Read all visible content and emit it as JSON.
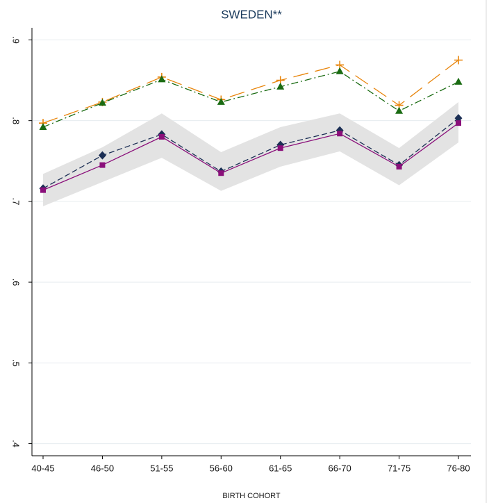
{
  "chart_data": {
    "type": "line",
    "title": "SWEDEN**",
    "x_label": "BIRTH COHORT",
    "categories": [
      "40-45",
      "46-50",
      "51-55",
      "56-60",
      "61-65",
      "66-70",
      "71-75",
      "76-80"
    ],
    "ylim": [
      0.385,
      0.915
    ],
    "yticks": [
      {
        "value": 0.4,
        "label": ".4"
      },
      {
        "value": 0.5,
        "label": ".5"
      },
      {
        "value": 0.6,
        "label": ".6"
      },
      {
        "value": 0.7,
        "label": ".7"
      },
      {
        "value": 0.8,
        "label": ".8"
      },
      {
        "value": 0.9,
        "label": ".9"
      }
    ],
    "grid": true,
    "band": {
      "color": "#e3e3e3",
      "upper": [
        0.734,
        0.767,
        0.809,
        0.761,
        0.792,
        0.809,
        0.766,
        0.823
      ],
      "lower": [
        0.694,
        0.724,
        0.754,
        0.713,
        0.743,
        0.762,
        0.72,
        0.773
      ]
    },
    "series": [
      {
        "color": "#e8850c",
        "marker": "plus",
        "dash": "22 10",
        "values": [
          0.797,
          0.823,
          0.854,
          0.826,
          0.85,
          0.869,
          0.819,
          0.875
        ]
      },
      {
        "color": "#1a6b12",
        "marker": "triangle",
        "dash": "10 4 2 4",
        "values": [
          0.792,
          0.822,
          0.851,
          0.823,
          0.842,
          0.861,
          0.812,
          0.848
        ]
      },
      {
        "color": "#1c2f55",
        "marker": "diamond",
        "dash": "8 4",
        "values": [
          0.716,
          0.757,
          0.783,
          0.737,
          0.77,
          0.788,
          0.745,
          0.803
        ]
      },
      {
        "color": "#8a0f7a",
        "marker": "square",
        "dash": "none",
        "values": [
          0.714,
          0.745,
          0.78,
          0.735,
          0.766,
          0.784,
          0.743,
          0.797
        ]
      }
    ]
  }
}
